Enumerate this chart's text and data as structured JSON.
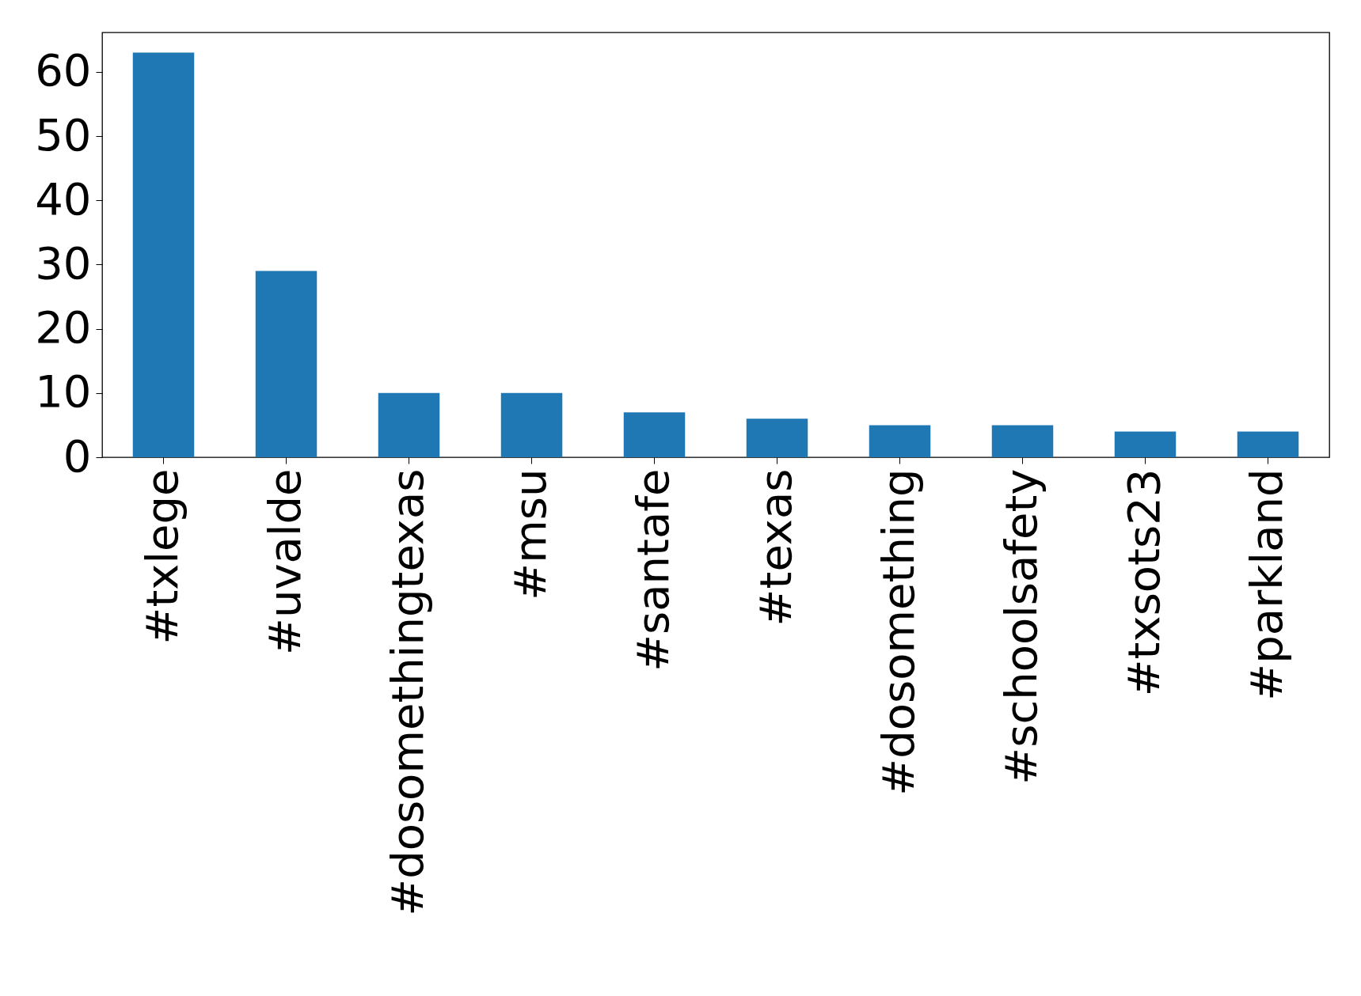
{
  "chart_data": {
    "type": "bar",
    "categories": [
      "#txlege",
      "#uvalde",
      "#dosomethingtexas",
      "#msu",
      "#santafe",
      "#texas",
      "#dosomething",
      "#schoolsafety",
      "#txsots23",
      "#parkland"
    ],
    "values": [
      63,
      29,
      10,
      10,
      7,
      6,
      5,
      5,
      4,
      4
    ],
    "color": "#1f77b4",
    "ylim": [
      0,
      66.15
    ],
    "yticks": [
      0,
      10,
      20,
      30,
      40,
      50,
      60
    ],
    "grid": false
  }
}
